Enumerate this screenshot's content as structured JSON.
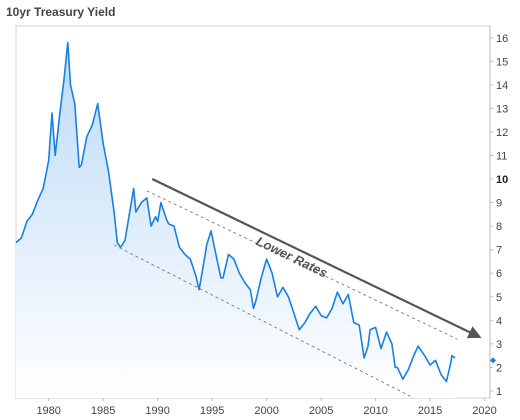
{
  "chart_data": {
    "type": "area",
    "title": "10yr Treasury Yield",
    "xlabel": "",
    "ylabel": "",
    "xlim": [
      1977,
      2020.5
    ],
    "ylim": [
      0.7,
      16.5
    ],
    "x_ticks": [
      1980,
      1985,
      1990,
      1995,
      2000,
      2005,
      2010,
      2015,
      2020
    ],
    "y_ticks": [
      1,
      2,
      3,
      4,
      5,
      6,
      7,
      8,
      9,
      10,
      11,
      12,
      13,
      14,
      15,
      16
    ],
    "y_axis_side": "right",
    "emphasized_tick": 10,
    "grid": false,
    "colors": {
      "line": "#1a7fe0",
      "fill_top": "#bcdaf6",
      "fill_bottom": "#ffffff",
      "channel": "#888888",
      "arrow": "#555555",
      "marker": "#1a7fe0"
    },
    "series": [
      {
        "x": [
          1977.0,
          1977.5,
          1978.0,
          1978.5,
          1979.0,
          1979.5,
          1980.0,
          1980.3,
          1980.6,
          1981.0,
          1981.4,
          1981.75,
          1982.0,
          1982.4,
          1982.8,
          1983.0,
          1983.5,
          1984.0,
          1984.5,
          1985.0,
          1985.5,
          1986.0,
          1986.3,
          1986.6,
          1987.0,
          1987.4,
          1987.8,
          1988.0,
          1988.5,
          1989.0,
          1989.4,
          1989.8,
          1990.0,
          1990.3,
          1990.8,
          1991.0,
          1991.5,
          1992.0,
          1992.5,
          1993.0,
          1993.5,
          1993.8,
          1994.0,
          1994.5,
          1994.9,
          1995.3,
          1995.8,
          1996.0,
          1996.5,
          1997.0,
          1997.5,
          1998.0,
          1998.5,
          1998.8,
          1999.0,
          1999.5,
          2000.0,
          2000.5,
          2001.0,
          2001.5,
          2002.0,
          2002.5,
          2003.0,
          2003.5,
          2004.0,
          2004.5,
          2005.0,
          2005.5,
          2006.0,
          2006.5,
          2007.0,
          2007.5,
          2008.0,
          2008.5,
          2008.95,
          2009.3,
          2009.5,
          2010.0,
          2010.5,
          2011.0,
          2011.5,
          2011.8,
          2012.0,
          2012.5,
          2013.0,
          2013.5,
          2013.9,
          2014.5,
          2015.0,
          2015.5,
          2016.0,
          2016.5,
          2016.9,
          2017.0,
          2017.3
        ],
        "y": [
          7.3,
          7.5,
          8.2,
          8.5,
          9.1,
          9.6,
          10.8,
          12.8,
          11.0,
          12.7,
          14.2,
          15.8,
          14.0,
          13.2,
          10.5,
          10.6,
          11.8,
          12.3,
          13.2,
          11.5,
          10.3,
          8.6,
          7.3,
          7.1,
          7.4,
          8.5,
          9.6,
          8.6,
          9.0,
          9.2,
          8.0,
          8.4,
          8.2,
          9.0,
          8.3,
          8.1,
          8.0,
          7.1,
          6.8,
          6.6,
          5.9,
          5.3,
          5.8,
          7.2,
          7.8,
          6.9,
          5.8,
          5.8,
          6.8,
          6.6,
          6.0,
          5.6,
          5.3,
          4.5,
          4.8,
          5.8,
          6.6,
          6.0,
          5.0,
          5.4,
          5.0,
          4.3,
          3.6,
          3.9,
          4.3,
          4.6,
          4.2,
          4.1,
          4.5,
          5.2,
          4.7,
          5.1,
          3.9,
          3.8,
          2.4,
          2.9,
          3.6,
          3.7,
          2.8,
          3.5,
          3.0,
          2.0,
          2.0,
          1.5,
          1.9,
          2.5,
          2.9,
          2.5,
          2.1,
          2.3,
          1.7,
          1.4,
          2.2,
          2.5,
          2.4
        ]
      }
    ],
    "current_value": 2.3,
    "annotations": [
      {
        "text": "Lower Rates",
        "kind": "arrow",
        "from": [
          1989.5,
          10.0
        ],
        "to": [
          2019.5,
          3.3
        ]
      },
      {
        "kind": "channel-upper",
        "from": [
          1989.0,
          9.5
        ],
        "to": [
          2017.5,
          3.2
        ]
      },
      {
        "kind": "channel-lower",
        "from": [
          1986.0,
          7.2
        ],
        "to": [
          2013.5,
          0.7
        ]
      }
    ]
  }
}
